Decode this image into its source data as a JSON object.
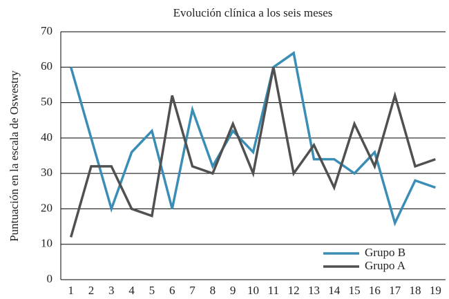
{
  "chart_data": {
    "type": "line",
    "title": "Evolución clínica a los seis meses",
    "y_label": "Puntuación en la escala de Oswestry",
    "categories": [
      "1",
      "2",
      "3",
      "4",
      "5",
      "6",
      "7",
      "8",
      "9",
      "10",
      "11",
      "12",
      "13",
      "14",
      "15",
      "16",
      "17",
      "18",
      "19"
    ],
    "series": [
      {
        "name": "Grupo B",
        "color": "#3a8db5",
        "values": [
          60,
          40,
          20,
          36,
          42,
          20,
          48,
          32,
          42,
          36,
          60,
          64,
          34,
          34,
          30,
          36,
          16,
          28,
          26
        ]
      },
      {
        "name": "Grupo A",
        "color": "#505050",
        "values": [
          12,
          32,
          32,
          20,
          18,
          52,
          32,
          30,
          44,
          30,
          60,
          30,
          38,
          26,
          44,
          32,
          52,
          32,
          34
        ]
      }
    ],
    "ylim": [
      0,
      70
    ],
    "yticks": [
      0,
      10,
      20,
      30,
      40,
      50,
      60,
      70
    ],
    "grid": true,
    "legend": "lower right"
  }
}
